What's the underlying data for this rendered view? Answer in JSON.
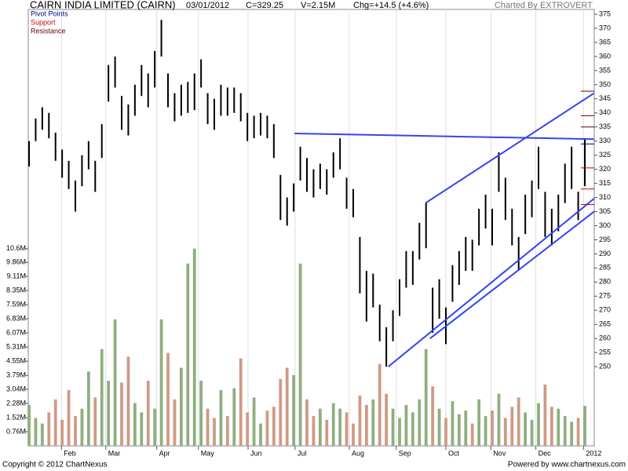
{
  "chart_data": {
    "type": "range-bar",
    "title": "CAIRN INDIA LIMITED (CAIRN)",
    "date": "03/01/2012",
    "close_text": "C=329.25",
    "volume_text": "V=2.15M",
    "change_text": "Chg=+14.5 (+4.6%)",
    "credit": "Charted By EXTROVERT",
    "footer_left": "Copyright © 2012 ChartNexus",
    "footer_right": "Powered by www.chartnexus.com",
    "legend": [
      {
        "name": "Pivot Points",
        "color": "#000080"
      },
      {
        "name": "Support",
        "color": "#cc0000"
      },
      {
        "name": "Resistance",
        "color": "#660000"
      }
    ],
    "high": [
      330,
      338,
      342,
      340,
      333,
      327,
      323,
      316,
      325,
      330,
      323,
      336,
      357,
      360,
      346,
      343,
      350,
      357,
      354,
      362,
      373,
      354,
      347,
      350,
      351,
      354,
      359,
      347,
      345,
      350,
      349,
      349,
      347,
      340,
      339,
      340,
      339,
      336,
      318,
      310,
      315,
      328,
      324,
      320,
      322,
      320,
      326,
      331,
      317,
      313,
      296,
      284,
      283,
      272,
      264,
      270,
      281,
      291,
      291,
      301,
      308,
      278,
      281,
      271,
      286,
      291,
      296,
      295,
      306,
      311,
      306,
      326,
      317,
      306,
      296,
      311,
      316,
      328,
      312,
      306,
      311,
      322,
      328,
      312,
      331
    ],
    "low": [
      321,
      330,
      334,
      331,
      323,
      317,
      313,
      305,
      314,
      320,
      312,
      324,
      344,
      349,
      334,
      332,
      339,
      346,
      342,
      349,
      360,
      342,
      337,
      339,
      340,
      341,
      349,
      336,
      334,
      339,
      339,
      340,
      337,
      330,
      331,
      332,
      331,
      324,
      302,
      300,
      305,
      316,
      312,
      310,
      313,
      311,
      317,
      320,
      306,
      303,
      276,
      266,
      271,
      259,
      250,
      259,
      268,
      278,
      279,
      288,
      292,
      262,
      267,
      258,
      273,
      279,
      284,
      284,
      293,
      299,
      293,
      312,
      302,
      293,
      284,
      297,
      303,
      313,
      296,
      293,
      298,
      308,
      313,
      302,
      314
    ],
    "color": "#000000",
    "volume": [
      2.2,
      1.5,
      1.2,
      1.8,
      2.5,
      1.4,
      3.0,
      1.6,
      2.0,
      4.0,
      2.6,
      5.2,
      3.5,
      6.8,
      3.4,
      4.8,
      2.3,
      1.8,
      3.5,
      2.0,
      6.8,
      5.0,
      2.5,
      4.2,
      9.8,
      10.6,
      3.5,
      2.0,
      1.5,
      3.0,
      1.6,
      3.1,
      4.7,
      1.8,
      2.6,
      1.2,
      1.9,
      2.1,
      3.6,
      4.2,
      3.8,
      9.8,
      2.5,
      1.6,
      2.0,
      1.4,
      2.3,
      2.0,
      1.8,
      1.2,
      2.7,
      2.2,
      2.5,
      4.4,
      2.8,
      2.0,
      1.5,
      2.2,
      1.8,
      2.5,
      5.2,
      3.2,
      2.0,
      1.5,
      2.4,
      1.7,
      1.9,
      1.2,
      2.5,
      1.6,
      1.9,
      2.8,
      1.5,
      2.1,
      2.6,
      1.8,
      1.4,
      2.3,
      3.3,
      2.1,
      2.0,
      1.6,
      1.3,
      1.5,
      2.15
    ],
    "volume_up_color": "#8fae80",
    "volume_down_color": "#cf9a86",
    "ylim": [
      221.9,
      376.7
    ],
    "yticks": [
      250,
      255,
      260,
      265,
      270,
      275,
      280,
      285,
      290,
      295,
      300,
      305,
      310,
      315,
      320,
      325,
      330,
      335,
      340,
      345,
      350,
      355,
      360,
      365,
      370,
      375
    ],
    "y2lim": [
      0,
      23.46
    ],
    "y2ticks": [
      {
        "value": 0.76,
        "label": "0.76M"
      },
      {
        "value": 1.52,
        "label": "1.52M"
      },
      {
        "value": 2.28,
        "label": "2.28M"
      },
      {
        "value": 3.04,
        "label": "3.04M"
      },
      {
        "value": 3.79,
        "label": "3.79M"
      },
      {
        "value": 4.55,
        "label": "4.55M"
      },
      {
        "value": 5.31,
        "label": "5.31M"
      },
      {
        "value": 6.07,
        "label": "6.07M"
      },
      {
        "value": 6.83,
        "label": "6.83M"
      },
      {
        "value": 7.59,
        "label": "7.59M"
      },
      {
        "value": 8.35,
        "label": "8.35M"
      },
      {
        "value": 9.11,
        "label": "9.11M"
      },
      {
        "value": 9.86,
        "label": "9.86M"
      },
      {
        "value": 10.6,
        "label": "10.6M"
      }
    ],
    "xlim": [
      0,
      84
    ],
    "xticks": [
      {
        "value": 4.9,
        "label": "Feb"
      },
      {
        "value": 11.6,
        "label": "Mar"
      },
      {
        "value": 19.3,
        "label": "Apr"
      },
      {
        "value": 25.6,
        "label": "May"
      },
      {
        "value": 33.1,
        "label": "Jun"
      },
      {
        "value": 40.2,
        "label": "Jul"
      },
      {
        "value": 48.4,
        "label": "Aug"
      },
      {
        "value": 55.5,
        "label": "Sep"
      },
      {
        "value": 63,
        "label": "Oct"
      },
      {
        "value": 69.8,
        "label": "Nov"
      },
      {
        "value": 76.6,
        "label": "Dec"
      },
      {
        "value": 83.8,
        "label": "2012"
      }
    ],
    "trendlines": [
      {
        "x": [
          40.1,
          85.4
        ],
        "y": [
          332.7,
          330.7
        ]
      },
      {
        "x": [
          59.9,
          85.4
        ],
        "y": [
          308,
          347
        ]
      },
      {
        "x": [
          54.3,
          85.4
        ],
        "y": [
          250,
          309.6
        ]
      },
      {
        "x": [
          60.6,
          85.4
        ],
        "y": [
          260,
          305
        ]
      }
    ],
    "trendline_color": "#3344ee",
    "pivot": [
      329
    ],
    "support": [
      320.5,
      313,
      307.5
    ],
    "resistance": [
      335,
      339,
      347.7
    ]
  }
}
